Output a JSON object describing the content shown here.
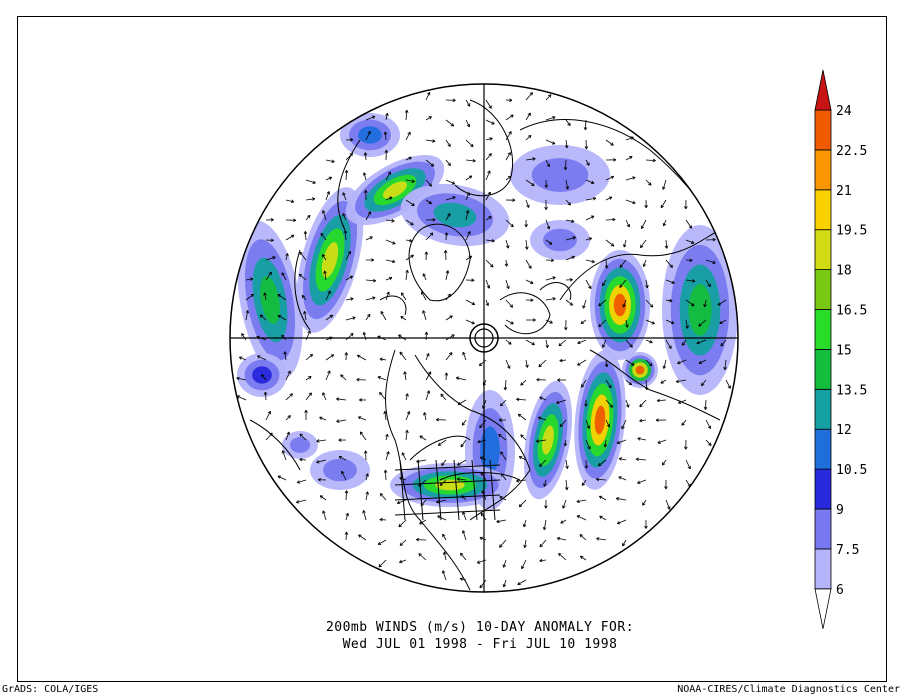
{
  "caption": {
    "line1": "200mb WINDS (m/s)   10-DAY ANOMALY FOR:",
    "line2": "Wed JUL 01 1998 - Fri JUL 10 1998"
  },
  "footer": {
    "left": "GrADS: COLA/IGES",
    "right": "NOAA-CIRES/Climate Diagnostics Center"
  },
  "colorbar": {
    "labels": [
      "6",
      "7.5",
      "9",
      "10.5",
      "12",
      "13.5",
      "15",
      "16.5",
      "18",
      "19.5",
      "21",
      "22.5",
      "24"
    ],
    "colors": [
      "#ffffff",
      "#b4b4fa",
      "#7878f0",
      "#2828dc",
      "#1e6edc",
      "#14a0a0",
      "#14be3c",
      "#28dc28",
      "#78c814",
      "#d2dc14",
      "#fad200",
      "#fa9600",
      "#f05a00",
      "#c81414"
    ]
  }
}
